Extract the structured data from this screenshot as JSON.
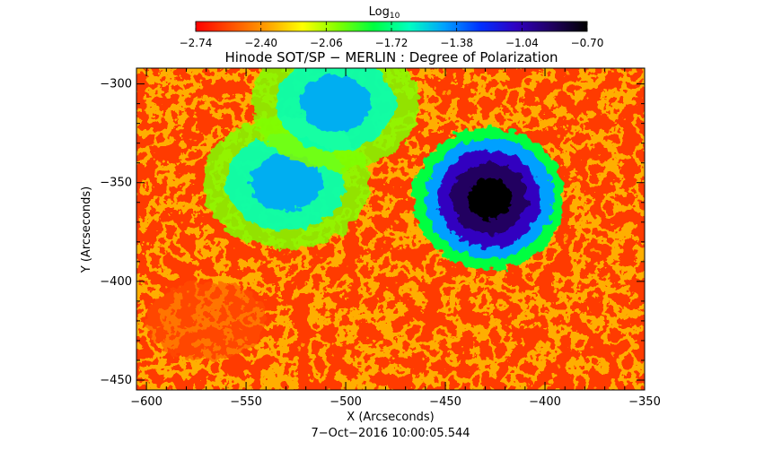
{
  "chart_data": {
    "type": "heatmap",
    "title": "Hinode SOT/SP − MERLIN : Degree of Polarization",
    "xlabel": "X (Arcseconds)",
    "ylabel": "Y (Arcseconds)",
    "xlim": [
      -605,
      -350
    ],
    "ylim": [
      -455,
      -292
    ],
    "x_ticks": [
      -600,
      -550,
      -500,
      -450,
      -400,
      -350
    ],
    "x_tick_labels": [
      "−600",
      "−550",
      "−500",
      "−450",
      "−400",
      "−350"
    ],
    "y_ticks": [
      -300,
      -350,
      -400,
      -450
    ],
    "y_tick_labels": [
      "−300",
      "−350",
      "−400",
      "−450"
    ],
    "colorbar": {
      "label": "Log",
      "label_subscript": "10",
      "range": [
        -2.74,
        -0.7
      ],
      "ticks": [
        -2.74,
        -2.4,
        -2.06,
        -1.72,
        -1.38,
        -1.04,
        -0.7
      ],
      "tick_labels": [
        "−2.74",
        "−2.40",
        "−2.06",
        "−1.72",
        "−1.38",
        "−1.04",
        "−0.70"
      ],
      "colormap": [
        "#ff0000",
        "#ff5000",
        "#ffa000",
        "#ffff00",
        "#80ff00",
        "#00ff40",
        "#00ffc0",
        "#00a0ff",
        "#0030ff",
        "#3000c0",
        "#200060",
        "#000000"
      ]
    },
    "features": [
      {
        "kind": "sunspot",
        "x": -428,
        "y": -358,
        "value": -0.72
      },
      {
        "kind": "plage",
        "x": -530,
        "y": -350,
        "value": -1.45
      },
      {
        "kind": "plage",
        "x": -505,
        "y": -310,
        "value": -1.5
      },
      {
        "kind": "quiet",
        "x": -570,
        "y": -420,
        "value": -2.55
      }
    ],
    "footer": "7−Oct−2016 10:00:05.544"
  }
}
